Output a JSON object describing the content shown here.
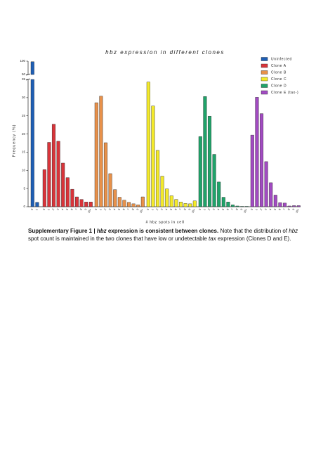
{
  "chart_data": {
    "type": "bar",
    "title": "hbz expression in different clones",
    "ylabel": "Frequency (%)",
    "xlabel": "# hbz spots in cell",
    "ylim": [
      0,
      100
    ],
    "ybreak": [
      35,
      50
    ],
    "yticks": [
      0,
      5,
      10,
      15,
      20,
      25,
      30,
      35,
      50,
      100
    ],
    "legend": "top-right",
    "series": [
      {
        "name": "Uninfected",
        "color": "#1f5fb5",
        "categories": [
          "0",
          "1"
        ],
        "values": [
          98,
          1.2
        ]
      },
      {
        "name": "Clone A",
        "color": "#d9343a",
        "categories": [
          "0",
          "1",
          "2",
          "3",
          "4",
          "5",
          "6",
          "7",
          "8",
          "9",
          "10+"
        ],
        "values": [
          10.2,
          17.7,
          22.7,
          18,
          12,
          8,
          4.8,
          2.7,
          2,
          1.3,
          1.3
        ]
      },
      {
        "name": "Clone B",
        "color": "#e8914a",
        "categories": [
          "0",
          "1",
          "2",
          "3",
          "4",
          "5",
          "6",
          "7",
          "8",
          "9",
          "10+"
        ],
        "values": [
          28.6,
          30.4,
          17.6,
          9.1,
          4.7,
          2.6,
          1.8,
          1.2,
          0.8,
          0.5,
          2.7
        ]
      },
      {
        "name": "Clone C",
        "color": "#f4ea2a",
        "categories": [
          "0",
          "1",
          "2",
          "3",
          "4",
          "5",
          "6",
          "7",
          "8",
          "9",
          "10+"
        ],
        "values": [
          34.3,
          27.7,
          15.5,
          8.4,
          4.9,
          3,
          2,
          1.3,
          0.9,
          0.8,
          1.6
        ]
      },
      {
        "name": "Clone D",
        "color": "#1fa46a",
        "categories": [
          "0",
          "1",
          "2",
          "3",
          "4",
          "5",
          "6",
          "7",
          "8",
          "9",
          "10+"
        ],
        "values": [
          19.3,
          30.3,
          24.9,
          14.4,
          6.8,
          2.6,
          1.3,
          0.5,
          0.2,
          0.1,
          0.1
        ]
      },
      {
        "name": "Clone E (tax-)",
        "color": "#a24bc2",
        "categories": [
          "0",
          "1",
          "2",
          "3",
          "4",
          "5",
          "6",
          "7",
          "8",
          "9",
          "10+"
        ],
        "values": [
          19.7,
          30.1,
          25.6,
          12.4,
          6.6,
          3.2,
          1.1,
          1,
          0.2,
          0.3,
          0.3
        ]
      }
    ]
  },
  "caption": [
    {
      "text": "Supplementary Figure 1 | ",
      "style": "bold"
    },
    {
      "text": "hbz",
      "style": "bold-italic"
    },
    {
      "text": " expression is consistent between clones.",
      "style": "bold"
    },
    {
      "text": "  Note that the distribution of ",
      "style": "normal"
    },
    {
      "text": "hbz",
      "style": "italic"
    },
    {
      "text": " spot count is maintained in the two clones that have low or undetectable ",
      "style": "normal"
    },
    {
      "text": "tax",
      "style": "italic"
    },
    {
      "text": " expression (Clones D and E).",
      "style": "normal"
    }
  ]
}
